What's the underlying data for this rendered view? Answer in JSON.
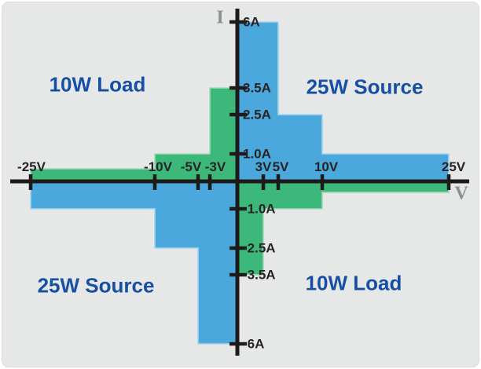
{
  "colors": {
    "panel_bg": "#e6e7e7",
    "axis": "#1d1a19",
    "tick_text": "#272324",
    "quadrant_text": "#1650a4",
    "axis_letter_grey": "#8d8f92",
    "blue_fill": "#4aa8dd",
    "blue_edge": "#a9d5ef",
    "green_fill": "#3cb87b",
    "green_edge": "#a3d9bd"
  },
  "chart_data": {
    "type": "area",
    "description": "Four-quadrant V-I operating envelope with stepped power-limit regions",
    "x_axis": {
      "label": "V",
      "xlim": [
        -25,
        25
      ],
      "scale": "nonlinear-compressed",
      "ticks": [
        {
          "value": -25,
          "label": "-25V"
        },
        {
          "value": -10,
          "label": "-10V"
        },
        {
          "value": -5,
          "label": "-5V"
        },
        {
          "value": -3,
          "label": "-3V"
        },
        {
          "value": 3,
          "label": "3V"
        },
        {
          "value": 5,
          "label": "5V"
        },
        {
          "value": 10,
          "label": "10V"
        },
        {
          "value": 25,
          "label": "25V"
        }
      ]
    },
    "y_axis": {
      "label": "I",
      "ylim": [
        -6,
        6
      ],
      "ticks": [
        {
          "value": 6,
          "label": "6A"
        },
        {
          "value": 3.5,
          "label": "3.5A"
        },
        {
          "value": 2.5,
          "label": "2.5A"
        },
        {
          "value": 1,
          "label": "1.0A"
        },
        {
          "value": -1,
          "label": "-1.0A"
        },
        {
          "value": -2.5,
          "label": "-2.5A"
        },
        {
          "value": -3.5,
          "label": "-3.5A"
        },
        {
          "value": -6,
          "label": "-6A"
        }
      ]
    },
    "regions": [
      {
        "name": "quadrant-1-top-right",
        "label": "25W Source",
        "color": "blue",
        "steps": [
          {
            "v_from": 0,
            "v_to": 5,
            "i": 6
          },
          {
            "v_from": 5,
            "v_to": 10,
            "i": 2.5
          },
          {
            "v_from": 10,
            "v_to": 25,
            "i": 1
          }
        ]
      },
      {
        "name": "quadrant-2-top-left",
        "label": "10W Load",
        "color": "green",
        "steps": [
          {
            "v_from": -25,
            "v_to": -10,
            "i": 0.4
          },
          {
            "v_from": -10,
            "v_to": -3,
            "i": 1
          },
          {
            "v_from": -3,
            "v_to": 0,
            "i": 3.5
          }
        ]
      },
      {
        "name": "quadrant-3-bottom-left",
        "label": "25W Source",
        "color": "blue",
        "steps": [
          {
            "v_from": -25,
            "v_to": -10,
            "i": -1
          },
          {
            "v_from": -10,
            "v_to": -5,
            "i": -2.5
          },
          {
            "v_from": -5,
            "v_to": 0,
            "i": -6
          }
        ]
      },
      {
        "name": "quadrant-4-bottom-right",
        "label": "10W Load",
        "color": "green",
        "steps": [
          {
            "v_from": 0,
            "v_to": 3,
            "i": -3.5
          },
          {
            "v_from": 3,
            "v_to": 10,
            "i": -1
          },
          {
            "v_from": 10,
            "v_to": 25,
            "i": -0.4
          }
        ]
      }
    ]
  }
}
